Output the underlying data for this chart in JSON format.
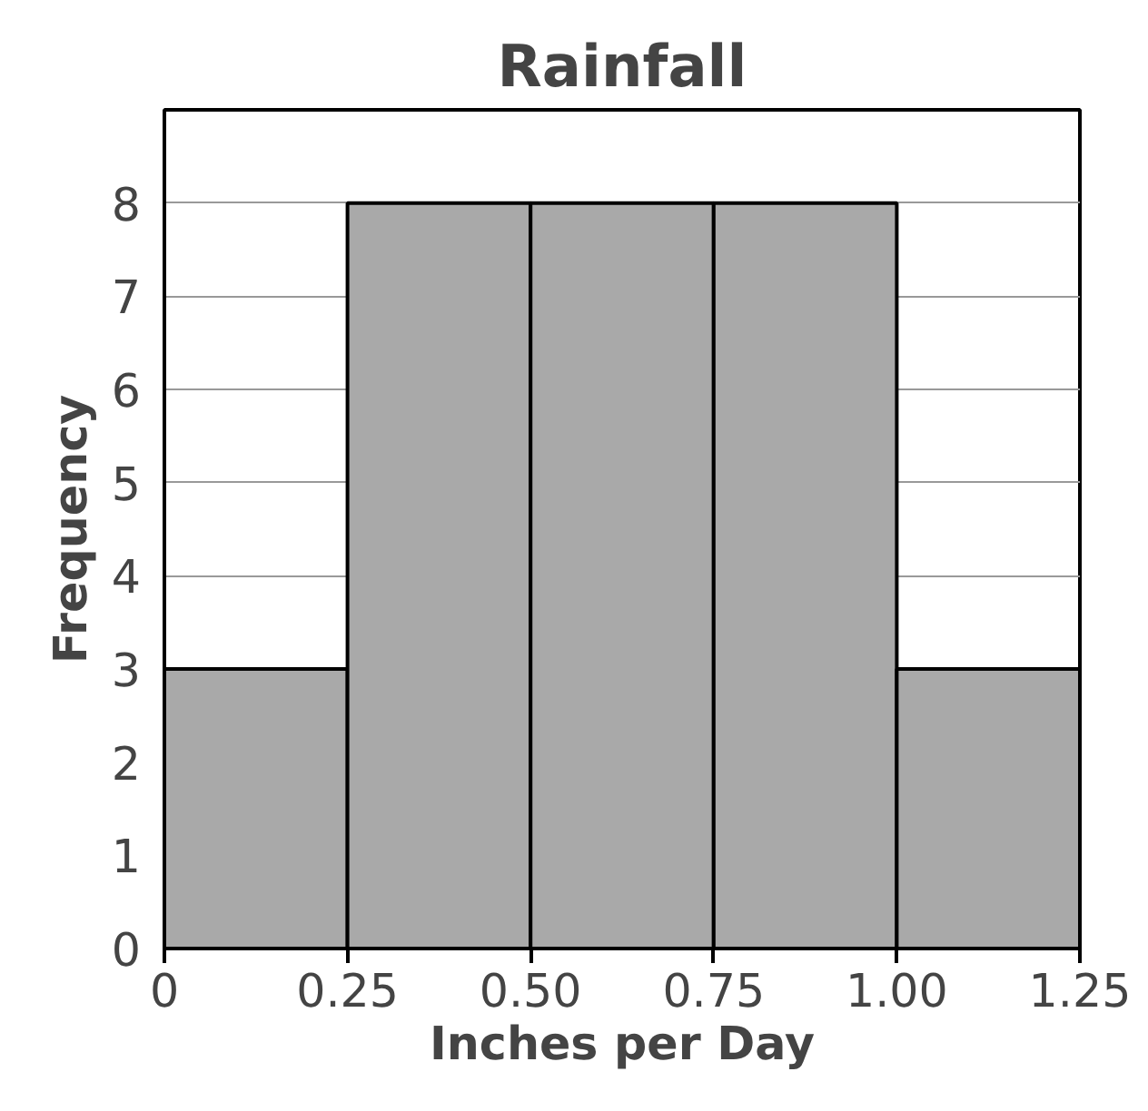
{
  "chart_data": {
    "type": "histogram",
    "title": "Rainfall",
    "xlabel": "Inches per Day",
    "ylabel": "Frequency",
    "bins": [
      0,
      0.25,
      0.5,
      0.75,
      1.0,
      1.25
    ],
    "values": [
      3,
      8,
      8,
      8,
      3
    ],
    "color": "#a9a9a9",
    "xlim": [
      0,
      1.25
    ],
    "xticks": [
      0,
      {
        "value": 0.25,
        "label": "0.25"
      },
      {
        "value": 0.5,
        "label": "0.50"
      },
      {
        "value": 0.75,
        "label": "0.75"
      },
      {
        "value": 1.0,
        "label": "1.00"
      },
      {
        "value": 1.25,
        "label": "1.25"
      }
    ],
    "ylim": [
      0,
      9
    ],
    "yticks": [
      0,
      1,
      2,
      3,
      4,
      5,
      6,
      7,
      8
    ],
    "grid": "y"
  }
}
